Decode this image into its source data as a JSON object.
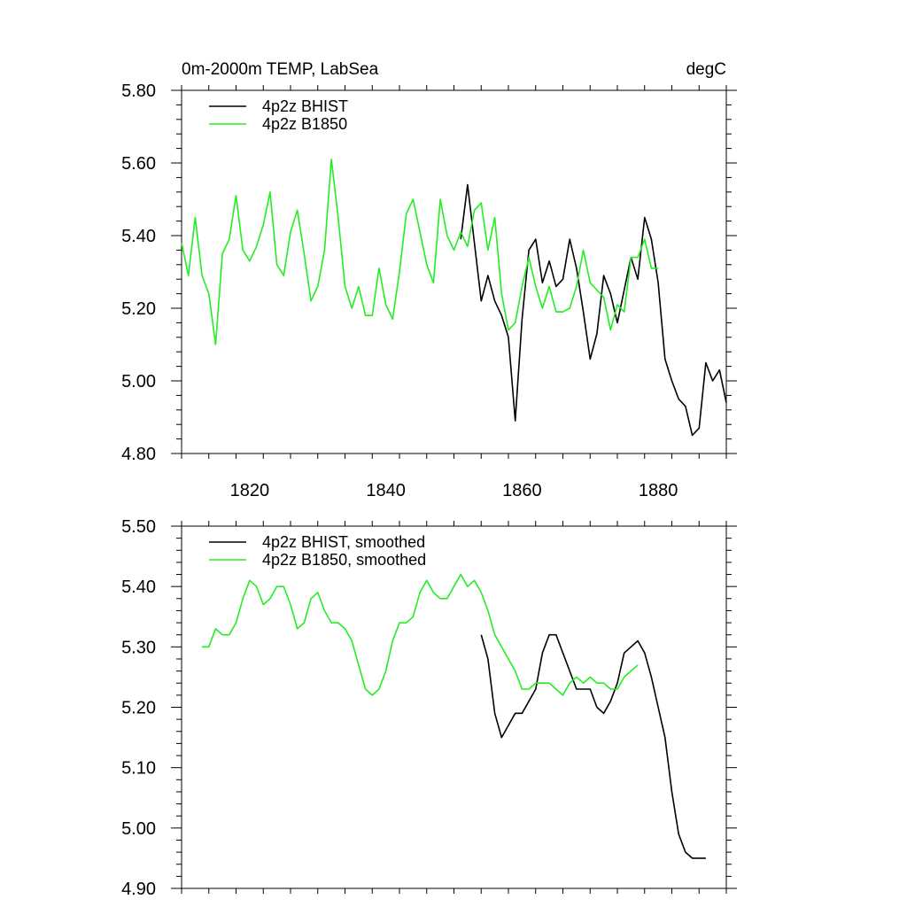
{
  "chart_data": [
    {
      "type": "line",
      "title": "0m-2000m TEMP, LabSea",
      "units_label": "degC",
      "xlim": [
        1810,
        1890
      ],
      "ylim": [
        4.8,
        5.8
      ],
      "x_ticks": [
        1820,
        1840,
        1860,
        1880
      ],
      "x_tick_labels": [
        "1820",
        "1840",
        "1860",
        "1880"
      ],
      "y_ticks": [
        4.8,
        5.0,
        5.2,
        5.4,
        5.6,
        5.8
      ],
      "y_tick_labels": [
        "4.80",
        "5.00",
        "5.20",
        "5.40",
        "5.60",
        "5.80"
      ],
      "legend_position": "top-left",
      "series": [
        {
          "name": "4p2z BHIST",
          "color": "#000000",
          "x": [
            1851,
            1852,
            1853,
            1854,
            1855,
            1856,
            1857,
            1858,
            1859,
            1860,
            1861,
            1862,
            1863,
            1864,
            1865,
            1866,
            1867,
            1868,
            1869,
            1870,
            1871,
            1872,
            1873,
            1874,
            1875,
            1876,
            1877,
            1878,
            1879,
            1880,
            1881,
            1882,
            1883,
            1884,
            1885,
            1886,
            1887,
            1888,
            1889,
            1890
          ],
          "values": [
            5.39,
            5.54,
            5.38,
            5.22,
            5.29,
            5.22,
            5.18,
            5.12,
            4.89,
            5.17,
            5.36,
            5.39,
            5.27,
            5.33,
            5.26,
            5.28,
            5.39,
            5.31,
            5.19,
            5.06,
            5.13,
            5.29,
            5.24,
            5.16,
            5.25,
            5.34,
            5.28,
            5.45,
            5.39,
            5.27,
            5.06,
            5.0,
            4.95,
            4.93,
            4.85,
            4.87,
            5.05,
            5.0,
            5.03,
            4.94
          ]
        },
        {
          "name": "4p2z B1850",
          "color": "#22ee22",
          "x": [
            1810,
            1811,
            1812,
            1813,
            1814,
            1815,
            1816,
            1817,
            1818,
            1819,
            1820,
            1821,
            1822,
            1823,
            1824,
            1825,
            1826,
            1827,
            1828,
            1829,
            1830,
            1831,
            1832,
            1833,
            1834,
            1835,
            1836,
            1837,
            1838,
            1839,
            1840,
            1841,
            1842,
            1843,
            1844,
            1845,
            1846,
            1847,
            1848,
            1849,
            1850,
            1851,
            1852,
            1853,
            1854,
            1855,
            1856,
            1857,
            1858,
            1859,
            1860,
            1861,
            1862,
            1863,
            1864,
            1865,
            1866,
            1867,
            1868,
            1869,
            1870,
            1871,
            1872,
            1873,
            1874,
            1875,
            1876,
            1877,
            1878,
            1879,
            1880
          ],
          "values": [
            5.38,
            5.29,
            5.45,
            5.29,
            5.24,
            5.1,
            5.35,
            5.39,
            5.51,
            5.36,
            5.33,
            5.37,
            5.43,
            5.52,
            5.32,
            5.29,
            5.41,
            5.47,
            5.35,
            5.22,
            5.26,
            5.36,
            5.61,
            5.45,
            5.26,
            5.2,
            5.26,
            5.18,
            5.18,
            5.31,
            5.21,
            5.17,
            5.3,
            5.46,
            5.5,
            5.41,
            5.32,
            5.27,
            5.5,
            5.4,
            5.36,
            5.41,
            5.37,
            5.47,
            5.49,
            5.36,
            5.45,
            5.24,
            5.14,
            5.16,
            5.26,
            5.34,
            5.26,
            5.2,
            5.26,
            5.19,
            5.19,
            5.2,
            5.26,
            5.36,
            5.27,
            5.25,
            5.23,
            5.14,
            5.21,
            5.19,
            5.34,
            5.34,
            5.39,
            5.31,
            5.31
          ]
        }
      ]
    },
    {
      "type": "line",
      "title": "",
      "xlim": [
        1810,
        1890
      ],
      "ylim": [
        4.9,
        5.5
      ],
      "x_ticks": [
        1820,
        1840,
        1860,
        1880
      ],
      "x_tick_labels": [],
      "y_ticks": [
        4.9,
        5.0,
        5.1,
        5.2,
        5.3,
        5.4,
        5.5
      ],
      "y_tick_labels": [
        "4.90",
        "5.00",
        "5.10",
        "5.20",
        "5.30",
        "5.40",
        "5.50"
      ],
      "legend_position": "top-left",
      "series": [
        {
          "name": "4p2z BHIST, smoothed",
          "color": "#000000",
          "x": [
            1854,
            1855,
            1856,
            1857,
            1858,
            1859,
            1860,
            1861,
            1862,
            1863,
            1864,
            1865,
            1866,
            1867,
            1868,
            1869,
            1870,
            1871,
            1872,
            1873,
            1874,
            1875,
            1876,
            1877,
            1878,
            1879,
            1880,
            1881,
            1882,
            1883,
            1884,
            1885,
            1886,
            1887
          ],
          "values": [
            5.32,
            5.28,
            5.19,
            5.15,
            5.17,
            5.19,
            5.19,
            5.21,
            5.23,
            5.29,
            5.32,
            5.32,
            5.29,
            5.26,
            5.23,
            5.23,
            5.23,
            5.2,
            5.19,
            5.21,
            5.24,
            5.29,
            5.3,
            5.31,
            5.29,
            5.25,
            5.2,
            5.15,
            5.06,
            4.99,
            4.96,
            4.95,
            4.95,
            4.95
          ]
        },
        {
          "name": "4p2z B1850, smoothed",
          "color": "#22ee22",
          "x": [
            1813,
            1814,
            1815,
            1816,
            1817,
            1818,
            1819,
            1820,
            1821,
            1822,
            1823,
            1824,
            1825,
            1826,
            1827,
            1828,
            1829,
            1830,
            1831,
            1832,
            1833,
            1834,
            1835,
            1836,
            1837,
            1838,
            1839,
            1840,
            1841,
            1842,
            1843,
            1844,
            1845,
            1846,
            1847,
            1848,
            1849,
            1850,
            1851,
            1852,
            1853,
            1854,
            1855,
            1856,
            1857,
            1858,
            1859,
            1860,
            1861,
            1862,
            1863,
            1864,
            1865,
            1866,
            1867,
            1868,
            1869,
            1870,
            1871,
            1872,
            1873,
            1874,
            1875,
            1876,
            1877
          ],
          "values": [
            5.3,
            5.3,
            5.33,
            5.32,
            5.32,
            5.34,
            5.38,
            5.41,
            5.4,
            5.37,
            5.38,
            5.4,
            5.4,
            5.37,
            5.33,
            5.34,
            5.38,
            5.39,
            5.36,
            5.34,
            5.34,
            5.33,
            5.31,
            5.27,
            5.23,
            5.22,
            5.23,
            5.26,
            5.31,
            5.34,
            5.34,
            5.35,
            5.39,
            5.41,
            5.39,
            5.38,
            5.38,
            5.4,
            5.42,
            5.4,
            5.41,
            5.39,
            5.36,
            5.32,
            5.3,
            5.28,
            5.26,
            5.23,
            5.23,
            5.24,
            5.24,
            5.24,
            5.23,
            5.22,
            5.24,
            5.25,
            5.24,
            5.25,
            5.24,
            5.24,
            5.23,
            5.23,
            5.25,
            5.26,
            5.27
          ]
        }
      ]
    }
  ]
}
